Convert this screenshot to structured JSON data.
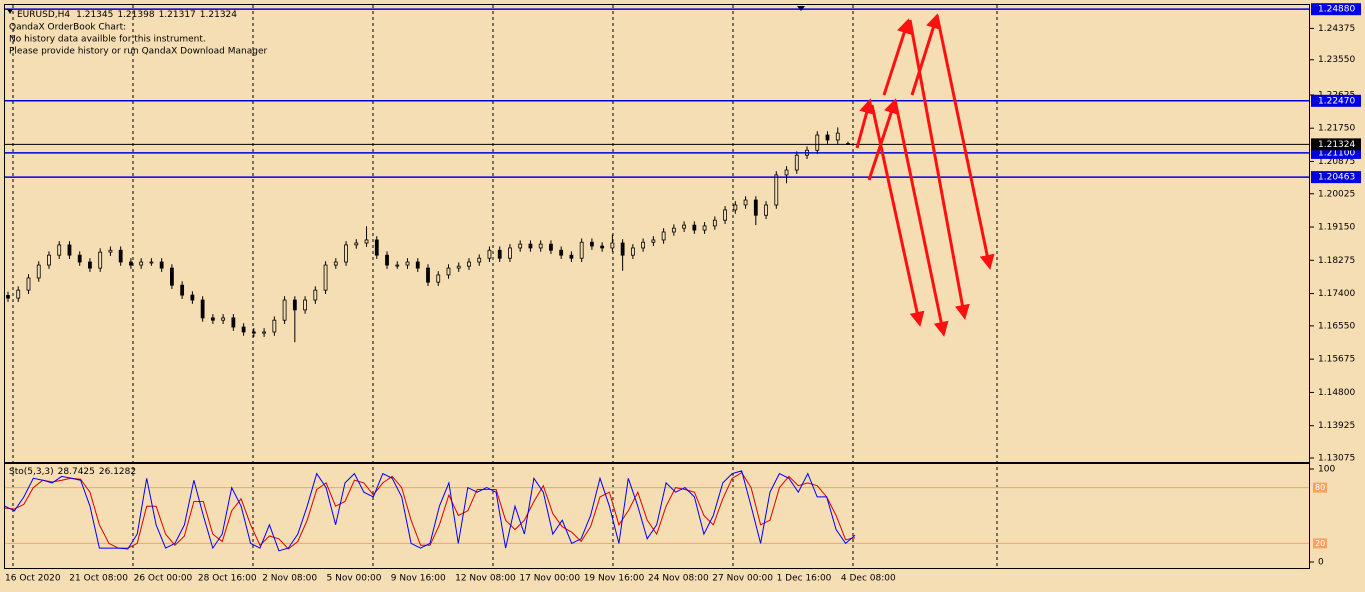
{
  "header": {
    "symbol": "EURUSD,H4",
    "lines": [
      "QandaX OrderBook Chart:",
      "No history data availble for this instrument.",
      "Please provide history or run QandaX Download Manager"
    ]
  },
  "price_chart": {
    "ylim": [
      1.1297,
      1.2499
    ],
    "yticks": [
      1.24375,
      {
        "value": 1.2355,
        "label": "1.23550"
      },
      1.22625,
      {
        "value": 1.2175,
        "label": "1.21750"
      },
      1.20875,
      1.20025,
      {
        "value": 1.1915,
        "label": "1.19150"
      },
      1.18275,
      {
        "value": 1.174,
        "label": "1.17400"
      },
      {
        "value": 1.1655,
        "label": "1.16550"
      },
      1.15675,
      {
        "value": 1.148,
        "label": "1.14800"
      },
      1.13925,
      1.13075
    ],
    "levels": [
      {
        "value": 1.2488,
        "label": "1.24880"
      },
      {
        "value": 1.2247,
        "label": "1.22470"
      },
      {
        "value": 1.211,
        "label": "1.21100"
      },
      1.20463
    ],
    "level_color": "#0000e0",
    "x_labels": [
      "16 Oct 2020",
      "21 Oct 08:00",
      "26 Oct 00:00",
      "28 Oct 16:00",
      "2 Nov 08:00",
      "5 Nov 00:00",
      "9 Nov 16:00",
      "12 Nov 08:00",
      "17 Nov 00:00",
      "19 Nov 16:00",
      "24 Nov 08:00",
      "27 Nov 00:00",
      "1 Dec 16:00",
      "4 Dec 08:00"
    ],
    "candles": [
      [
        1.1735,
        1.1745,
        1.1718,
        1.1728
      ],
      [
        1.1728,
        1.1759,
        1.1718,
        1.1749
      ],
      [
        1.1749,
        1.1791,
        1.1739,
        1.1781
      ],
      [
        1.1781,
        1.1825,
        1.1771,
        1.1815
      ],
      [
        1.1815,
        1.1851,
        1.1805,
        1.1841
      ],
      [
        1.1841,
        1.1878,
        1.1831,
        1.1868
      ],
      [
        1.1868,
        1.1878,
        1.1831,
        1.1841
      ],
      [
        1.1841,
        1.1851,
        1.1813,
        1.1823
      ],
      [
        1.1823,
        1.1833,
        1.1797,
        1.1807
      ],
      [
        1.1807,
        1.1859,
        1.1797,
        1.1849
      ],
      [
        1.1849,
        1.1864,
        1.1839,
        1.1854
      ],
      [
        1.1854,
        1.1864,
        1.1813,
        1.1823
      ],
      [
        1.1823,
        1.1833,
        1.1805,
        1.1815
      ],
      [
        1.1815,
        1.1833,
        1.1805,
        1.1823
      ],
      [
        1.1823,
        1.1833,
        1.1813,
        1.1823
      ],
      [
        1.1823,
        1.1833,
        1.1797,
        1.1807
      ],
      [
        1.1807,
        1.1817,
        1.1752,
        1.1762
      ],
      [
        1.1762,
        1.1772,
        1.1726,
        1.1736
      ],
      [
        1.1736,
        1.1746,
        1.1713,
        1.1723
      ],
      [
        1.1723,
        1.1733,
        1.1666,
        1.1676
      ],
      [
        1.1676,
        1.1686,
        1.166,
        1.167
      ],
      [
        1.167,
        1.1686,
        1.166,
        1.1676
      ],
      [
        1.1676,
        1.1686,
        1.1642,
        1.1652
      ],
      [
        1.1652,
        1.1662,
        1.1629,
        1.1639
      ],
      [
        1.1639,
        1.1649,
        1.1626,
        1.1636
      ],
      [
        1.1636,
        1.1649,
        1.1626,
        1.1639
      ],
      [
        1.1639,
        1.168,
        1.1629,
        1.167
      ],
      [
        1.167,
        1.1733,
        1.166,
        1.1723
      ],
      [
        1.1723,
        1.1733,
        1.1612,
        1.1697
      ],
      [
        1.1697,
        1.1733,
        1.1687,
        1.1723
      ],
      [
        1.1723,
        1.1759,
        1.1713,
        1.1749
      ],
      [
        1.1749,
        1.1825,
        1.1739,
        1.1815
      ],
      [
        1.1815,
        1.1833,
        1.1805,
        1.1823
      ],
      [
        1.1823,
        1.1878,
        1.1813,
        1.1868
      ],
      [
        1.1868,
        1.1883,
        1.1858,
        1.1873
      ],
      [
        1.1873,
        1.1917,
        1.1863,
        1.1881
      ],
      [
        1.1881,
        1.1891,
        1.1831,
        1.1841
      ],
      [
        1.1841,
        1.1851,
        1.1805,
        1.1815
      ],
      [
        1.1815,
        1.1825,
        1.1805,
        1.1815
      ],
      [
        1.1815,
        1.1833,
        1.1805,
        1.1823
      ],
      [
        1.1823,
        1.1833,
        1.1797,
        1.1807
      ],
      [
        1.1807,
        1.1817,
        1.176,
        1.177
      ],
      [
        1.177,
        1.1799,
        1.176,
        1.1789
      ],
      [
        1.1789,
        1.1817,
        1.1779,
        1.1807
      ],
      [
        1.1807,
        1.1822,
        1.1797,
        1.1812
      ],
      [
        1.1812,
        1.1833,
        1.1802,
        1.1823
      ],
      [
        1.1823,
        1.1843,
        1.1813,
        1.1833
      ],
      [
        1.1833,
        1.1864,
        1.1823,
        1.1854
      ],
      [
        1.1854,
        1.1864,
        1.1823,
        1.1833
      ],
      [
        1.1833,
        1.187,
        1.1823,
        1.186
      ],
      [
        1.186,
        1.188,
        1.185,
        1.187
      ],
      [
        1.187,
        1.188,
        1.185,
        1.186
      ],
      [
        1.186,
        1.188,
        1.185,
        1.187
      ],
      [
        1.187,
        1.188,
        1.1844,
        1.1854
      ],
      [
        1.1854,
        1.1864,
        1.1831,
        1.1841
      ],
      [
        1.1841,
        1.1851,
        1.1823,
        1.1833
      ],
      [
        1.1833,
        1.1885,
        1.1823,
        1.1875
      ],
      [
        1.1875,
        1.1885,
        1.1855,
        1.1865
      ],
      [
        1.1865,
        1.1875,
        1.185,
        1.186
      ],
      [
        1.186,
        1.1895,
        1.185,
        1.1873
      ],
      [
        1.1873,
        1.1883,
        1.18,
        1.1841
      ],
      [
        1.1841,
        1.187,
        1.1831,
        1.186
      ],
      [
        1.186,
        1.1885,
        1.185,
        1.1875
      ],
      [
        1.1875,
        1.1891,
        1.1865,
        1.1881
      ],
      [
        1.1881,
        1.1912,
        1.1871,
        1.1902
      ],
      [
        1.1902,
        1.1922,
        1.1892,
        1.1912
      ],
      [
        1.1912,
        1.193,
        1.1902,
        1.192
      ],
      [
        1.192,
        1.193,
        1.1897,
        1.1907
      ],
      [
        1.1907,
        1.1928,
        1.1897,
        1.1918
      ],
      [
        1.1918,
        1.1943,
        1.1908,
        1.1933
      ],
      [
        1.1933,
        1.197,
        1.1923,
        1.196
      ],
      [
        1.196,
        1.1983,
        1.195,
        1.1973
      ],
      [
        1.1973,
        1.1996,
        1.1963,
        1.1986
      ],
      [
        1.1986,
        1.1996,
        1.192,
        1.1946
      ],
      [
        1.1946,
        1.1983,
        1.1936,
        1.1973
      ],
      [
        1.1973,
        1.2062,
        1.1963,
        1.2052
      ],
      [
        1.2052,
        1.2075,
        1.203,
        1.2065
      ],
      [
        1.2065,
        1.2114,
        1.2055,
        1.2104
      ],
      [
        1.2104,
        1.2127,
        1.2094,
        1.2117
      ],
      [
        1.2117,
        1.2167,
        1.2107,
        1.2157
      ],
      [
        1.2157,
        1.2167,
        1.2134,
        1.2144
      ],
      [
        1.2144,
        1.2177,
        1.2134,
        1.2162
      ],
      [
        1.21345,
        1.21398,
        1.21317,
        1.21324
      ]
    ]
  },
  "oscillator": {
    "label": "Sto(5,3,3)",
    "ylim": [
      -6.45,
      106.45
    ],
    "yticks": [
      100,
      0
    ],
    "levels": [
      80,
      20
    ],
    "level_color": "#ffa060",
    "main": {
      "color": "#0000ff",
      "values": [
        60,
        55,
        70,
        90,
        88,
        85,
        92,
        90,
        88,
        60,
        15,
        15,
        15,
        14,
        30,
        90,
        40,
        15,
        20,
        40,
        88,
        50,
        15,
        30,
        80,
        60,
        20,
        15,
        40,
        12,
        15,
        30,
        60,
        95,
        80,
        40,
        85,
        95,
        75,
        70,
        95,
        90,
        70,
        20,
        15,
        20,
        60,
        85,
        20,
        80,
        75,
        80,
        75,
        15,
        60,
        30,
        90,
        75,
        30,
        45,
        20,
        25,
        50,
        90,
        60,
        20,
        90,
        60,
        25,
        40,
        85,
        75,
        80,
        70,
        30,
        50,
        85,
        95,
        98,
        60,
        20,
        75,
        95,
        90,
        75,
        95,
        70,
        70,
        35,
        20,
        28.7425
      ]
    },
    "signal": {
      "color": "#e00000",
      "values": [
        58,
        57,
        62,
        80,
        88,
        86,
        88,
        90,
        89,
        75,
        40,
        20,
        15,
        15,
        20,
        60,
        60,
        30,
        18,
        28,
        65,
        65,
        30,
        22,
        55,
        68,
        40,
        18,
        28,
        25,
        14,
        22,
        45,
        78,
        85,
        60,
        65,
        88,
        85,
        72,
        85,
        92,
        80,
        45,
        18,
        18,
        40,
        72,
        50,
        55,
        78,
        78,
        78,
        45,
        35,
        45,
        65,
        82,
        52,
        38,
        32,
        22,
        38,
        70,
        75,
        40,
        55,
        75,
        45,
        30,
        60,
        80,
        78,
        75,
        50,
        40,
        68,
        90,
        96,
        80,
        40,
        45,
        80,
        92,
        82,
        85,
        82,
        70,
        50,
        24,
        26.1282
      ]
    }
  }
}
